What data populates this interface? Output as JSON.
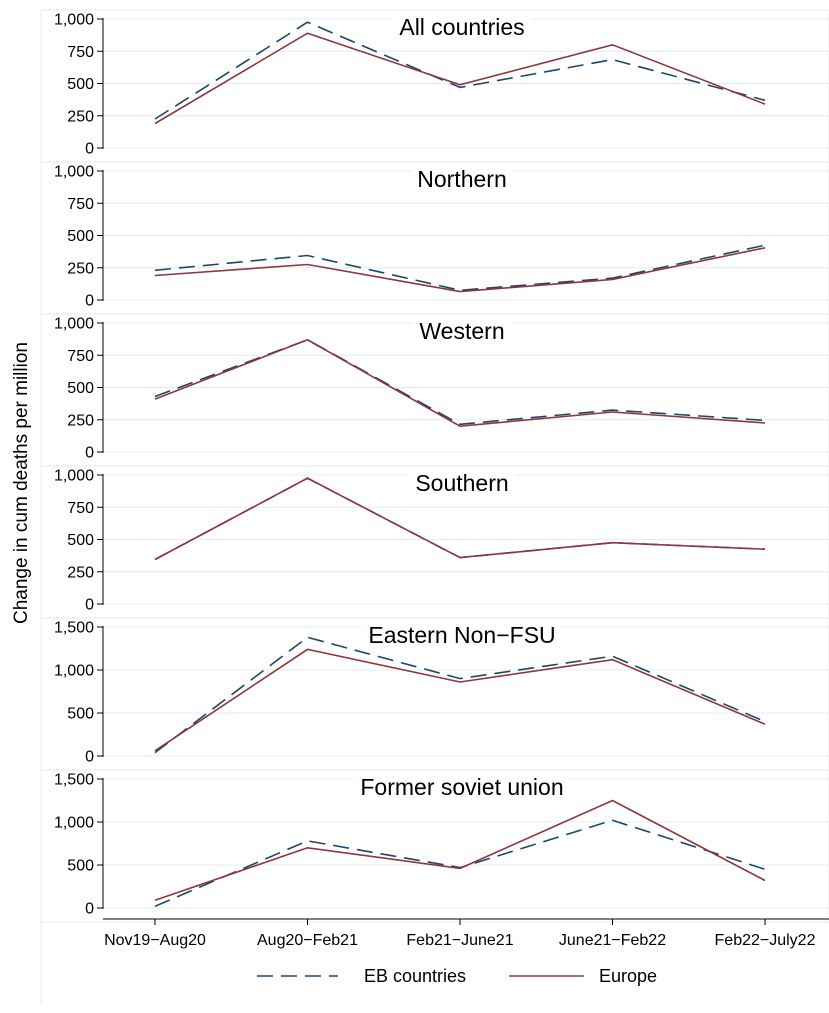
{
  "chart_data": {
    "type": "line",
    "ylabel": "Change in cum deaths per million",
    "categories": [
      "Nov19−Aug20",
      "Aug20−Feb21",
      "Feb21−June21",
      "June21−Feb22",
      "Feb22−July22"
    ],
    "legend": {
      "position": "bottom",
      "entries": [
        {
          "label": "EB countries",
          "color": "#1a476f",
          "dash": "dashed"
        },
        {
          "label": "Europe",
          "color": "#90353b",
          "dash": "solid"
        }
      ]
    },
    "grid": true,
    "panels": [
      {
        "title": "All countries",
        "ylim": [
          0,
          1000
        ],
        "yticks": [
          0,
          250,
          500,
          750,
          1000
        ],
        "ytick_labels": [
          "0",
          "250",
          "500",
          "750",
          "1,000"
        ],
        "series": [
          {
            "name": "EB countries",
            "values": [
              225,
              975,
              470,
              685,
              370
            ]
          },
          {
            "name": "Europe",
            "values": [
              190,
              890,
              490,
              800,
              340
            ]
          }
        ]
      },
      {
        "title": "Northern",
        "ylim": [
          0,
          1000
        ],
        "yticks": [
          0,
          250,
          500,
          750,
          1000
        ],
        "ytick_labels": [
          "0",
          "250",
          "500",
          "750",
          "1,000"
        ],
        "series": [
          {
            "name": "EB countries",
            "values": [
              230,
              345,
              75,
              170,
              425
            ]
          },
          {
            "name": "Europe",
            "values": [
              190,
              275,
              65,
              160,
              405
            ]
          }
        ]
      },
      {
        "title": "Western",
        "ylim": [
          0,
          1000
        ],
        "yticks": [
          0,
          250,
          500,
          750,
          1000
        ],
        "ytick_labels": [
          "0",
          "250",
          "500",
          "750",
          "1,000"
        ],
        "series": [
          {
            "name": "EB countries",
            "values": [
              430,
              870,
              215,
              325,
              245
            ]
          },
          {
            "name": "Europe",
            "values": [
              410,
              870,
              200,
              310,
              225
            ]
          }
        ]
      },
      {
        "title": "Southern",
        "ylim": [
          0,
          1000
        ],
        "yticks": [
          0,
          250,
          500,
          750,
          1000
        ],
        "ytick_labels": [
          "0",
          "250",
          "500",
          "750",
          "1,000"
        ],
        "series": [
          {
            "name": "EB countries",
            "values": [
              345,
              975,
              360,
              475,
              425
            ]
          },
          {
            "name": "Europe",
            "values": [
              345,
              975,
              360,
              475,
              425
            ]
          }
        ]
      },
      {
        "title": "Eastern Non−FSU",
        "ylim": [
          0,
          1500
        ],
        "yticks": [
          0,
          500,
          1000,
          1500
        ],
        "ytick_labels": [
          "0",
          "500",
          "1,000",
          "1,500"
        ],
        "series": [
          {
            "name": "EB countries",
            "values": [
              40,
              1380,
              900,
              1160,
              400
            ]
          },
          {
            "name": "Europe",
            "values": [
              60,
              1240,
              860,
              1120,
              370
            ]
          }
        ]
      },
      {
        "title": "Former soviet union",
        "ylim": [
          0,
          1500
        ],
        "yticks": [
          0,
          500,
          1000,
          1500
        ],
        "ytick_labels": [
          "0",
          "500",
          "1,000",
          "1,500"
        ],
        "series": [
          {
            "name": "EB countries",
            "values": [
              20,
              780,
              470,
              1020,
              450
            ]
          },
          {
            "name": "Europe",
            "values": [
              90,
              700,
              460,
              1250,
              320
            ]
          }
        ]
      }
    ]
  }
}
